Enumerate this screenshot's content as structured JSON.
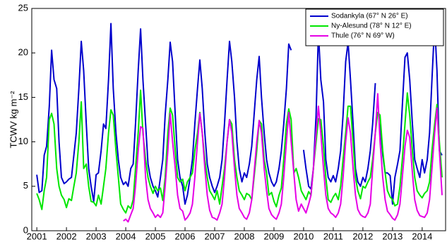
{
  "chart_data": {
    "type": "line",
    "ylabel": "TCWV kg m⁻²",
    "x": [
      2001.0,
      2001.08,
      2001.17,
      2001.25,
      2001.33,
      2001.42,
      2001.5,
      2001.58,
      2001.67,
      2001.75,
      2001.83,
      2001.92,
      2002.0,
      2002.08,
      2002.17,
      2002.25,
      2002.33,
      2002.42,
      2002.5,
      2002.58,
      2002.67,
      2002.75,
      2002.83,
      2002.92,
      2003.0,
      2003.08,
      2003.17,
      2003.25,
      2003.33,
      2003.42,
      2003.5,
      2003.58,
      2003.67,
      2003.75,
      2003.83,
      2003.92,
      2004.0,
      2004.08,
      2004.17,
      2004.25,
      2004.33,
      2004.42,
      2004.5,
      2004.58,
      2004.67,
      2004.75,
      2004.83,
      2004.92,
      2005.0,
      2005.08,
      2005.17,
      2005.25,
      2005.33,
      2005.42,
      2005.5,
      2005.58,
      2005.67,
      2005.75,
      2005.83,
      2005.92,
      2006.0,
      2006.08,
      2006.17,
      2006.25,
      2006.33,
      2006.42,
      2006.5,
      2006.58,
      2006.67,
      2006.75,
      2006.83,
      2006.92,
      2007.0,
      2007.08,
      2007.17,
      2007.25,
      2007.33,
      2007.42,
      2007.5,
      2007.58,
      2007.67,
      2007.75,
      2007.83,
      2007.92,
      2008.0,
      2008.08,
      2008.17,
      2008.25,
      2008.33,
      2008.42,
      2008.5,
      2008.58,
      2008.67,
      2008.75,
      2008.83,
      2008.92,
      2009.0,
      2009.08,
      2009.17,
      2009.25,
      2009.33,
      2009.42,
      2009.5,
      2009.58,
      2009.67,
      2009.75,
      2009.83,
      2009.92,
      2010.0,
      2010.08,
      2010.17,
      2010.25,
      2010.33,
      2010.42,
      2010.5,
      2010.58,
      2010.67,
      2010.75,
      2010.83,
      2010.92,
      2011.0,
      2011.08,
      2011.17,
      2011.25,
      2011.33,
      2011.42,
      2011.5,
      2011.58,
      2011.67,
      2011.75,
      2011.83,
      2011.92,
      2012.0,
      2012.08,
      2012.17,
      2012.25,
      2012.33,
      2012.42,
      2012.5,
      2012.58,
      2012.67,
      2012.75,
      2012.83,
      2012.92,
      2013.0,
      2013.08,
      2013.17,
      2013.25,
      2013.33,
      2013.42,
      2013.5,
      2013.58,
      2013.67,
      2013.75,
      2013.83,
      2013.92,
      2014.0,
      2014.08,
      2014.17,
      2014.25,
      2014.33,
      2014.42,
      2014.5,
      2014.58,
      2014.67
    ],
    "series": [
      {
        "name": "Sodankyla (67° N 26° E)",
        "color": "#0000cc",
        "values": [
          6.3,
          4.3,
          4.5,
          8.5,
          9.5,
          14,
          20.3,
          17,
          16,
          10,
          6,
          5.3,
          5.5,
          5.8,
          6,
          8.5,
          11,
          16,
          21.3,
          18,
          12,
          7,
          5,
          3.3,
          6.3,
          6.5,
          9,
          12,
          11.5,
          17,
          23.3,
          16,
          11,
          8,
          6,
          5.2,
          5.5,
          5,
          7,
          7.5,
          12,
          18,
          22.7,
          17,
          12,
          7.5,
          6,
          5,
          4.5,
          3.8,
          6,
          8,
          13,
          17,
          21.2,
          19,
          13,
          8,
          6,
          5,
          3,
          4,
          6,
          8,
          12,
          16,
          19.2,
          16,
          11,
          7.5,
          6,
          5,
          4.3,
          5,
          6,
          8,
          12,
          17,
          21.3,
          19,
          15,
          10,
          7,
          5.5,
          6.5,
          6,
          7.5,
          9.5,
          13,
          17,
          19.6,
          15,
          11,
          8,
          6.5,
          5.5,
          5,
          5.5,
          7,
          9,
          12,
          16,
          21,
          20.3,
          null,
          null,
          null,
          null,
          9.1,
          7,
          5,
          4.7,
          7,
          13,
          22.3,
          17,
          14.5,
          8,
          6,
          5.5,
          6.2,
          5.5,
          7,
          9,
          13,
          19,
          21.2,
          17,
          12,
          7,
          5.5,
          5,
          6,
          5.5,
          7,
          9,
          12,
          16.6,
          null,
          12,
          8.5,
          6.5,
          6.5,
          6.2,
          3,
          6,
          7.5,
          9,
          14,
          19.5,
          20,
          17,
          12,
          8,
          7,
          6,
          8,
          6.5,
          8,
          11,
          17,
          23.3,
          18,
          9,
          8.5
        ]
      },
      {
        "name": "Ny-Alesund (78° N 12° E)",
        "color": "#00e600",
        "values": [
          4.2,
          3.5,
          2.4,
          4.5,
          6,
          12.5,
          13.2,
          12,
          7,
          5,
          4,
          3.5,
          2.6,
          3.6,
          3.4,
          5,
          6.5,
          10,
          14.5,
          7,
          7.5,
          5,
          3.3,
          3.2,
          2.8,
          4,
          3,
          5,
          7,
          11,
          13.6,
          13,
          9,
          6,
          3,
          2.4,
          2,
          2.8,
          2.5,
          3.5,
          7,
          11,
          15.8,
          11,
          8,
          6,
          5,
          4.2,
          5,
          4.5,
          4.8,
          3.4,
          6,
          11,
          13.8,
          13,
          9,
          6,
          5.5,
          5.8,
          4.5,
          5.5,
          6,
          6.5,
          9,
          11,
          13.3,
          11,
          8,
          6,
          4.5,
          4,
          3.5,
          4.5,
          3,
          5,
          7,
          10,
          12.5,
          12,
          8,
          6,
          4.5,
          4,
          3.5,
          4.2,
          4,
          3.5,
          6,
          9,
          12.4,
          12,
          8,
          6.5,
          4,
          4.3,
          3.3,
          2.7,
          4,
          4.8,
          8,
          12,
          13.7,
          12.5,
          6.5,
          7,
          6,
          4.5,
          4,
          3.5,
          4.4,
          4,
          7,
          10,
          12.6,
          12.5,
          9.5,
          6,
          3.5,
          3.2,
          3.8,
          4.2,
          3.5,
          5,
          8,
          11,
          14,
          14,
          10,
          6,
          4.5,
          3.6,
          5,
          4.8,
          5.5,
          6,
          8,
          11,
          13.3,
          13,
          9,
          6.5,
          4.5,
          3.8,
          3.5,
          2.8,
          3,
          5,
          8,
          12,
          15.5,
          13,
          9,
          6,
          4.5,
          4,
          3.7,
          4.2,
          4.5,
          5.5,
          9,
          12,
          14.2,
          10,
          6
        ]
      },
      {
        "name": "Thule (76° N 69° W)",
        "color": "#e600e6",
        "values": [
          null,
          null,
          null,
          null,
          null,
          null,
          null,
          null,
          null,
          null,
          null,
          null,
          null,
          null,
          null,
          null,
          null,
          null,
          null,
          null,
          null,
          null,
          null,
          null,
          null,
          null,
          null,
          null,
          null,
          null,
          null,
          null,
          null,
          null,
          null,
          1.1,
          1.3,
          1,
          1.8,
          2.5,
          5,
          9,
          11.7,
          11.5,
          6,
          3.5,
          2.5,
          2,
          1.5,
          1.8,
          1.5,
          2,
          5,
          9,
          13.2,
          10,
          7,
          4,
          2.5,
          2.2,
          1.2,
          1.5,
          2,
          3,
          6,
          10,
          13.2,
          11,
          7,
          4,
          2.3,
          1.5,
          1.4,
          1.2,
          2,
          3,
          6,
          10,
          12.5,
          11,
          7,
          4,
          2.5,
          2,
          1.5,
          1.3,
          2,
          3.5,
          6.5,
          10,
          12.4,
          11,
          7,
          4.5,
          2.5,
          1.8,
          1.5,
          1.3,
          2,
          3,
          6,
          10,
          13.3,
          10,
          6.5,
          3.5,
          2.2,
          3,
          2.5,
          2,
          3,
          4,
          7,
          11,
          14,
          11,
          7,
          4,
          2.5,
          2,
          1.8,
          1.5,
          2,
          3,
          6,
          10,
          12.7,
          11,
          7,
          4,
          2.4,
          1.8,
          1.6,
          1.5,
          2,
          3,
          7,
          11,
          15.4,
          10,
          6,
          3.5,
          2.2,
          1.8,
          1.4,
          1.2,
          1.8,
          3,
          6,
          9.5,
          11.3,
          10.5,
          6.5,
          3.5,
          2.3,
          1.7,
          1.6,
          1.5,
          2,
          3.5,
          7,
          11,
          13.8,
          9,
          4
        ]
      }
    ],
    "xlim": [
      2000.83,
      2014.79
    ],
    "xticks": [
      2001,
      2002,
      2003,
      2004,
      2005,
      2006,
      2007,
      2008,
      2009,
      2010,
      2011,
      2012,
      2013,
      2014
    ],
    "ylim": [
      0,
      25
    ],
    "yticks": [
      0,
      5,
      10,
      15,
      20,
      25
    ],
    "grid": false,
    "legend": "upper right"
  }
}
